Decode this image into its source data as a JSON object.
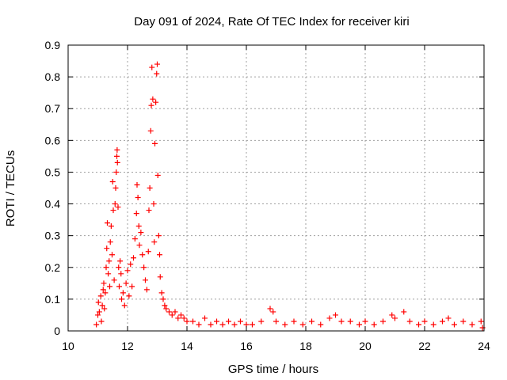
{
  "chart_data": {
    "type": "scatter",
    "title": "Day 091 of 2024, Rate Of TEC Index for receiver kiri",
    "xlabel": "GPS time / hours",
    "ylabel": "ROTI / TECUs",
    "xlim": [
      10,
      24
    ],
    "ylim": [
      0,
      0.9
    ],
    "xticks": [
      "10",
      "12",
      "14",
      "16",
      "18",
      "20",
      "22",
      "24"
    ],
    "yticks": [
      "0",
      "0.1",
      "0.2",
      "0.3",
      "0.4",
      "0.5",
      "0.6",
      "0.7",
      "0.8",
      "0.9"
    ],
    "grid": true,
    "legend": "none",
    "marker": "plus",
    "color": "#ff0000",
    "series": [
      {
        "points": [
          [
            10.95,
            0.02
          ],
          [
            11.0,
            0.05
          ],
          [
            11.02,
            0.09
          ],
          [
            11.05,
            0.06
          ],
          [
            11.1,
            0.11
          ],
          [
            11.12,
            0.03
          ],
          [
            11.15,
            0.08
          ],
          [
            11.18,
            0.13
          ],
          [
            11.2,
            0.15
          ],
          [
            11.22,
            0.07
          ],
          [
            11.25,
            0.12
          ],
          [
            11.28,
            0.2
          ],
          [
            11.3,
            0.26
          ],
          [
            11.32,
            0.34
          ],
          [
            11.35,
            0.18
          ],
          [
            11.38,
            0.22
          ],
          [
            11.4,
            0.14
          ],
          [
            11.42,
            0.28
          ],
          [
            11.45,
            0.33
          ],
          [
            11.48,
            0.24
          ],
          [
            11.5,
            0.47
          ],
          [
            11.52,
            0.38
          ],
          [
            11.55,
            0.16
          ],
          [
            11.58,
            0.4
          ],
          [
            11.6,
            0.45
          ],
          [
            11.62,
            0.5
          ],
          [
            11.64,
            0.55
          ],
          [
            11.65,
            0.57
          ],
          [
            11.66,
            0.53
          ],
          [
            11.68,
            0.39
          ],
          [
            11.7,
            0.2
          ],
          [
            11.72,
            0.14
          ],
          [
            11.75,
            0.22
          ],
          [
            11.78,
            0.18
          ],
          [
            11.8,
            0.1
          ],
          [
            11.85,
            0.12
          ],
          [
            11.9,
            0.08
          ],
          [
            11.95,
            0.15
          ],
          [
            12.0,
            0.19
          ],
          [
            12.05,
            0.11
          ],
          [
            12.1,
            0.21
          ],
          [
            12.15,
            0.14
          ],
          [
            12.2,
            0.23
          ],
          [
            12.25,
            0.29
          ],
          [
            12.3,
            0.37
          ],
          [
            12.32,
            0.46
          ],
          [
            12.35,
            0.42
          ],
          [
            12.38,
            0.33
          ],
          [
            12.4,
            0.27
          ],
          [
            12.45,
            0.31
          ],
          [
            12.5,
            0.24
          ],
          [
            12.55,
            0.2
          ],
          [
            12.6,
            0.16
          ],
          [
            12.65,
            0.13
          ],
          [
            12.7,
            0.25
          ],
          [
            12.72,
            0.38
          ],
          [
            12.75,
            0.45
          ],
          [
            12.78,
            0.63
          ],
          [
            12.8,
            0.71
          ],
          [
            12.82,
            0.83
          ],
          [
            12.85,
            0.73
          ],
          [
            12.88,
            0.4
          ],
          [
            12.9,
            0.28
          ],
          [
            12.92,
            0.59
          ],
          [
            12.95,
            0.72
          ],
          [
            12.98,
            0.81
          ],
          [
            13.0,
            0.84
          ],
          [
            13.02,
            0.49
          ],
          [
            13.05,
            0.3
          ],
          [
            13.08,
            0.24
          ],
          [
            13.1,
            0.17
          ],
          [
            13.15,
            0.12
          ],
          [
            13.2,
            0.1
          ],
          [
            13.25,
            0.08
          ],
          [
            13.3,
            0.07
          ],
          [
            13.4,
            0.06
          ],
          [
            13.5,
            0.05
          ],
          [
            13.6,
            0.06
          ],
          [
            13.7,
            0.04
          ],
          [
            13.8,
            0.05
          ],
          [
            13.9,
            0.04
          ],
          [
            14.0,
            0.03
          ],
          [
            14.2,
            0.03
          ],
          [
            14.4,
            0.02
          ],
          [
            14.6,
            0.04
          ],
          [
            14.8,
            0.02
          ],
          [
            15.0,
            0.03
          ],
          [
            15.2,
            0.02
          ],
          [
            15.4,
            0.03
          ],
          [
            15.6,
            0.02
          ],
          [
            15.8,
            0.03
          ],
          [
            16.0,
            0.02
          ],
          [
            16.2,
            0.02
          ],
          [
            16.5,
            0.03
          ],
          [
            16.8,
            0.07
          ],
          [
            16.9,
            0.06
          ],
          [
            17.0,
            0.03
          ],
          [
            17.3,
            0.02
          ],
          [
            17.6,
            0.03
          ],
          [
            17.9,
            0.02
          ],
          [
            18.2,
            0.03
          ],
          [
            18.5,
            0.02
          ],
          [
            18.8,
            0.04
          ],
          [
            19.0,
            0.05
          ],
          [
            19.2,
            0.03
          ],
          [
            19.5,
            0.03
          ],
          [
            19.8,
            0.02
          ],
          [
            20.0,
            0.03
          ],
          [
            20.3,
            0.02
          ],
          [
            20.6,
            0.03
          ],
          [
            20.9,
            0.05
          ],
          [
            21.0,
            0.04
          ],
          [
            21.3,
            0.06
          ],
          [
            21.5,
            0.03
          ],
          [
            21.8,
            0.02
          ],
          [
            22.0,
            0.03
          ],
          [
            22.3,
            0.02
          ],
          [
            22.6,
            0.03
          ],
          [
            22.8,
            0.04
          ],
          [
            23.0,
            0.02
          ],
          [
            23.3,
            0.03
          ],
          [
            23.6,
            0.02
          ],
          [
            23.9,
            0.03
          ],
          [
            23.95,
            0.01
          ]
        ]
      }
    ]
  }
}
